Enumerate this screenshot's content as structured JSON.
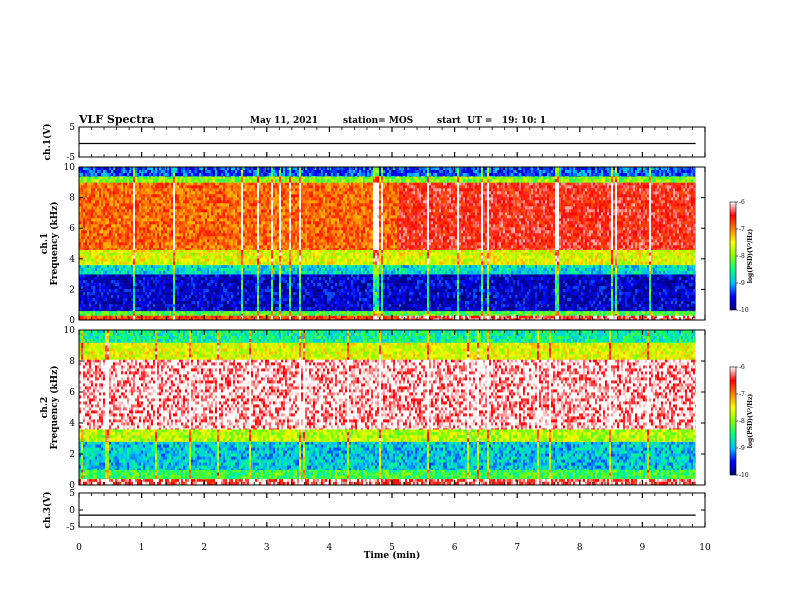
{
  "header": {
    "title": "VLF Spectra",
    "date": "May 11, 2021",
    "station": "station= MOS",
    "start": "start  UT =   19: 10: 1"
  },
  "chart_data": [
    {
      "type": "line",
      "name": "ch1-voltage",
      "ylabel": "ch.1(V)",
      "ylim": [
        -5,
        5
      ],
      "yticks": [
        "5",
        "-5"
      ],
      "xlim": [
        0,
        10
      ],
      "x": [
        0,
        9.85
      ],
      "values": [
        -0.5,
        -0.5
      ],
      "colors": {
        "line": "#000000"
      }
    },
    {
      "type": "heatmap",
      "name": "ch1-spectrogram",
      "ylabel": "Frequency (kHz)",
      "ylabel2": "ch.1",
      "ylim": [
        0,
        10
      ],
      "yticks": [
        "0",
        "2",
        "4",
        "6",
        "8",
        "10"
      ],
      "xlim": [
        0,
        10
      ],
      "data_xrange": [
        0,
        9.85
      ],
      "bands": [
        {
          "from": 0,
          "to": 0.3,
          "value": -6.2
        },
        {
          "from": 0.3,
          "to": 0.6,
          "value": -8.2
        },
        {
          "from": 0.6,
          "to": 3.0,
          "value": -9.7
        },
        {
          "from": 3.0,
          "to": 3.6,
          "value": -8.8
        },
        {
          "from": 3.6,
          "to": 4.6,
          "value": -7.6
        },
        {
          "from": 4.6,
          "to": 9.0,
          "value": -6.8
        },
        {
          "from": 9.0,
          "to": 9.4,
          "value": -8.0
        },
        {
          "from": 9.4,
          "to": 10,
          "value": -9.3
        }
      ],
      "segments": [
        {
          "x_from": 0,
          "x_to": 5.1,
          "level": -6.9
        },
        {
          "x_from": 5.1,
          "x_to": 9.85,
          "level": -6.5
        }
      ]
    },
    {
      "type": "heatmap",
      "name": "ch2-spectrogram",
      "ylabel": "Frequency (kHz)",
      "ylabel2": "ch.2",
      "ylim": [
        0,
        10
      ],
      "yticks": [
        "0",
        "2",
        "4",
        "6",
        "8",
        "10"
      ],
      "xlim": [
        0,
        10
      ],
      "data_xrange": [
        0,
        9.85
      ],
      "bands": [
        {
          "from": 0,
          "to": 0.4,
          "value": -6.3
        },
        {
          "from": 0.4,
          "to": 1.0,
          "value": -8.3
        },
        {
          "from": 1.0,
          "to": 2.8,
          "value": -8.9
        },
        {
          "from": 2.8,
          "to": 3.6,
          "value": -7.8
        },
        {
          "from": 3.6,
          "to": 8.1,
          "value": -6.1
        },
        {
          "from": 8.1,
          "to": 9.2,
          "value": -7.6
        },
        {
          "from": 9.2,
          "to": 10,
          "value": -8.6
        }
      ]
    },
    {
      "type": "line",
      "name": "ch3-voltage",
      "ylabel": "ch.3(V)",
      "ylim": [
        -5,
        5
      ],
      "yticks": [
        "5",
        "0",
        "-5"
      ],
      "xlim": [
        0,
        10
      ],
      "x": [
        0,
        9.85
      ],
      "values": [
        -1.5,
        -1.5
      ],
      "colors": {
        "line": "#000000"
      }
    }
  ],
  "xaxis": {
    "label": "Time (min)",
    "ticks": [
      "0",
      "1",
      "2",
      "3",
      "4",
      "5",
      "6",
      "7",
      "8",
      "9",
      "10"
    ]
  },
  "colorbar": {
    "label": "log(PSD)(V²/Hz)",
    "range": [
      -10,
      -6
    ],
    "ticks": [
      "-6",
      "-7",
      "-8",
      "-9",
      "-10"
    ],
    "colors": [
      "#000080",
      "#0000ff",
      "#00bfff",
      "#00ff80",
      "#80ff00",
      "#ffff00",
      "#ff8000",
      "#ff0000",
      "#ffffff"
    ]
  }
}
